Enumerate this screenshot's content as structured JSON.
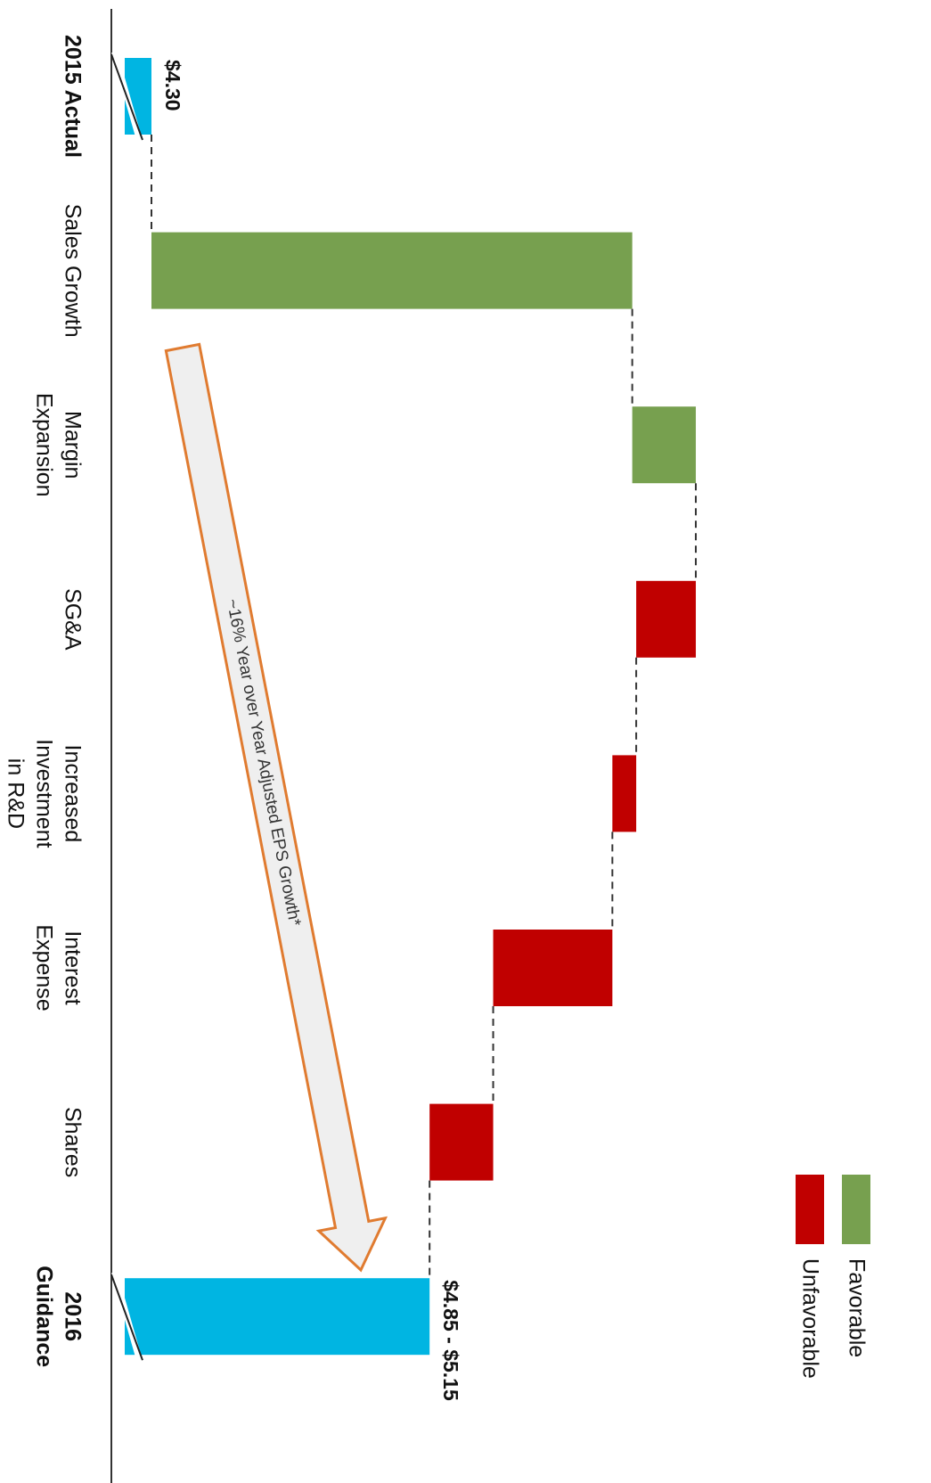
{
  "chart_data": {
    "type": "waterfall",
    "orientation": "rotated",
    "categories": [
      [
        "2015 Actual"
      ],
      [
        "Sales Growth"
      ],
      [
        "Margin",
        "Expansion"
      ],
      [
        "SG&A"
      ],
      [
        "Increased",
        "Investment",
        "in R&D"
      ],
      [
        "Interest",
        "Expense"
      ],
      [
        "Shares"
      ],
      [
        "2016",
        "Guidance"
      ]
    ],
    "measures": [
      "absolute",
      "relative",
      "relative",
      "relative",
      "relative",
      "relative",
      "relative",
      "total"
    ],
    "values": [
      4.3,
      1.21,
      0.16,
      -0.15,
      -0.06,
      -0.3,
      -0.16,
      5.0
    ],
    "value_labels": [
      "$4.30",
      null,
      null,
      null,
      null,
      null,
      null,
      "$4.85 - $5.15"
    ],
    "colors": {
      "total": "#00b5e2",
      "favorable": "#77a04f",
      "unfavorable": "#c00000"
    },
    "legend": [
      {
        "name": "Favorable",
        "color": "#77a04f"
      },
      {
        "name": "Unfavorable",
        "color": "#c00000"
      }
    ],
    "annotation": "~16% Year over Year Adjusted EPS Growth*"
  }
}
